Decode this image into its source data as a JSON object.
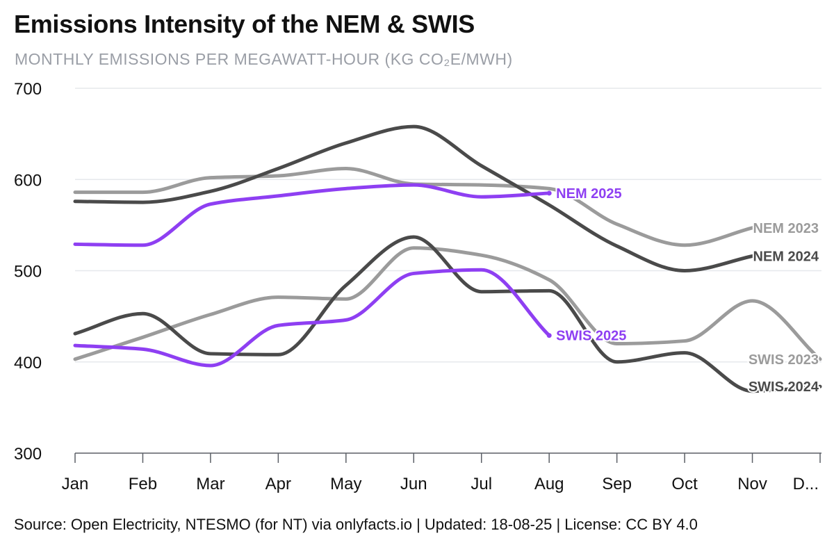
{
  "title": "Emissions Intensity of the NEM & SWIS",
  "subtitle": "MONTHLY EMISSIONS PER MEGAWATT-HOUR (KG CO₂E/MWH)",
  "footer": "Source: Open Electricity, NTESMO (for NT) via onlyfacts.io | Updated: 18-08-25 | License: CC BY 4.0",
  "chart_data": {
    "type": "line",
    "title": "Emissions Intensity of the NEM & SWIS",
    "subtitle": "MONTHLY EMISSIONS PER MEGAWATT-HOUR (KG CO₂E/MWH)",
    "categories": [
      "Jan",
      "Feb",
      "Mar",
      "Apr",
      "May",
      "Jun",
      "Jul",
      "Aug",
      "Sep",
      "Oct",
      "Nov",
      "D..."
    ],
    "ylim": [
      300,
      700
    ],
    "yticks": [
      300,
      400,
      500,
      600,
      700
    ],
    "grid": true,
    "legend": "none (series labels at line ends)",
    "series": [
      {
        "name": "NEM 2023",
        "color": "#9b9b9b",
        "values": [
          586,
          586,
          602,
          604,
          612,
          595,
          594,
          590,
          551,
          528,
          547,
          null
        ]
      },
      {
        "name": "NEM 2024",
        "color": "#4a4a4a",
        "values": [
          576,
          575,
          587,
          612,
          640,
          658,
          615,
          572,
          527,
          500,
          516,
          null
        ]
      },
      {
        "name": "NEM 2025",
        "color": "#8e3ff2",
        "values": [
          529,
          528,
          573,
          582,
          590,
          594,
          581,
          585,
          null,
          null,
          null,
          null
        ]
      },
      {
        "name": "SWIS 2023",
        "color": "#9b9b9b",
        "values": [
          403,
          427,
          452,
          471,
          469,
          525,
          517,
          490,
          420,
          423,
          467,
          403
        ]
      },
      {
        "name": "SWIS 2024",
        "color": "#4a4a4a",
        "values": [
          431,
          453,
          409,
          408,
          484,
          537,
          477,
          478,
          400,
          410,
          368,
          373
        ]
      },
      {
        "name": "SWIS 2025",
        "color": "#8e3ff2",
        "values": [
          418,
          414,
          396,
          440,
          446,
          497,
          501,
          429,
          null,
          null,
          null,
          null
        ]
      }
    ]
  },
  "colors": {
    "grid": "#e6e8ec",
    "axis": "#111111",
    "gray_line": "#9b9b9b",
    "dark_line": "#4a4a4a",
    "purple_line": "#8e3ff2"
  }
}
